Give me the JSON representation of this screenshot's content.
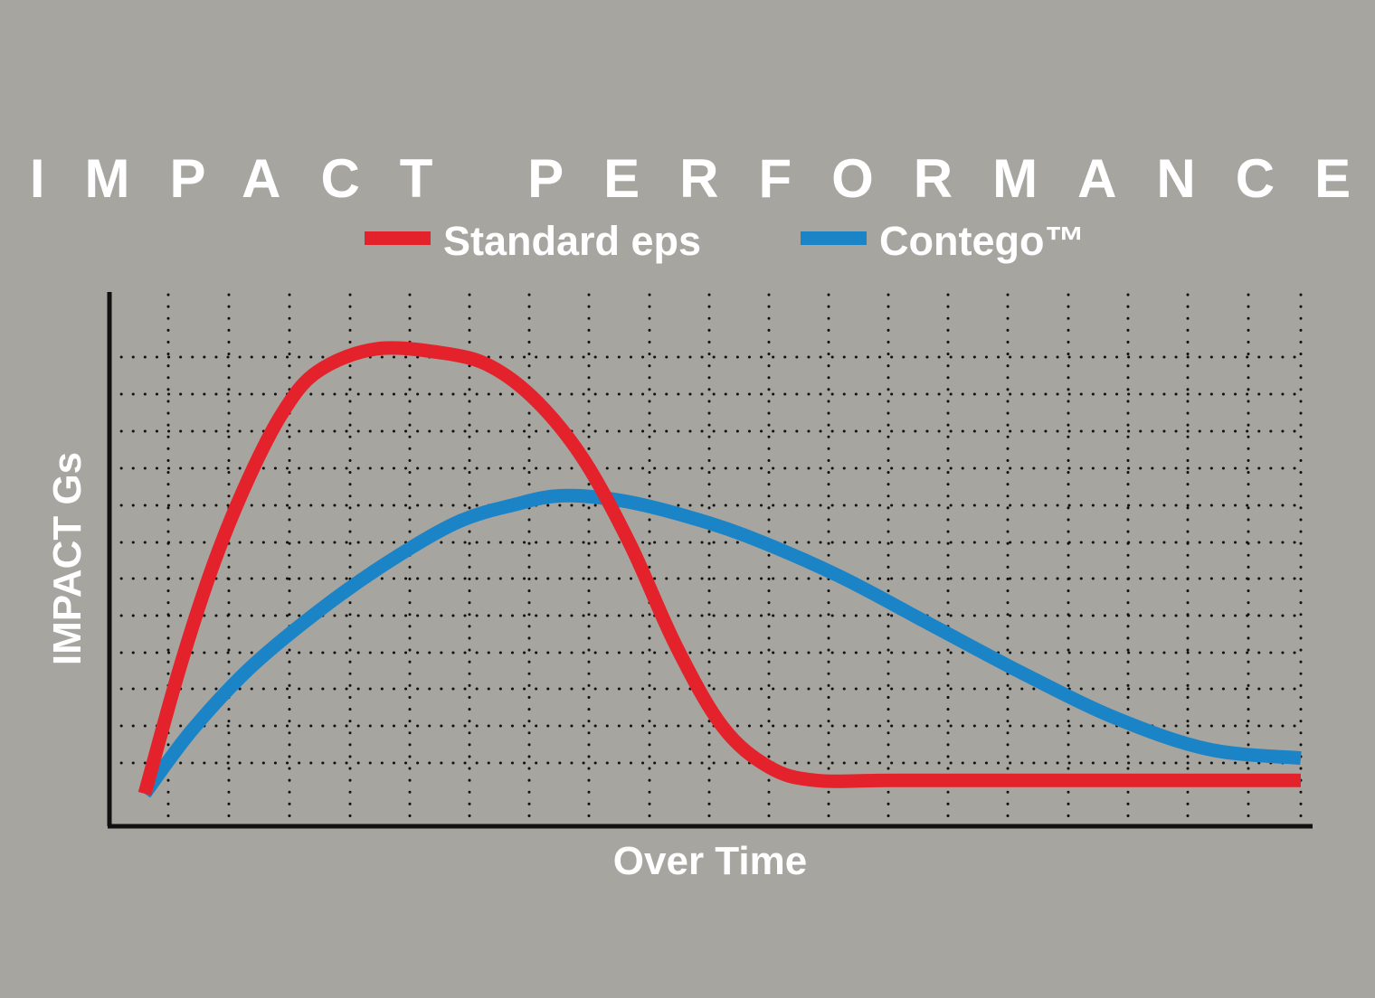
{
  "chart_data": {
    "type": "line",
    "title": "IMPACT PERFORMANCE",
    "xlabel": "Over Time",
    "ylabel": "IMPACT Gs",
    "x_ticks": "none (unlabeled)",
    "y_ticks": "none (unlabeled)",
    "grid": "dotted",
    "legend_position": "top",
    "series": [
      {
        "name": "Standard eps",
        "color": "#e3222b",
        "points": [
          [
            0.0,
            0.0
          ],
          [
            0.03,
            0.28
          ],
          [
            0.06,
            0.52
          ],
          [
            0.09,
            0.71
          ],
          [
            0.12,
            0.86
          ],
          [
            0.15,
            0.95
          ],
          [
            0.2,
            1.0
          ],
          [
            0.26,
            0.99
          ],
          [
            0.3,
            0.96
          ],
          [
            0.34,
            0.88
          ],
          [
            0.38,
            0.75
          ],
          [
            0.42,
            0.56
          ],
          [
            0.46,
            0.33
          ],
          [
            0.5,
            0.15
          ],
          [
            0.54,
            0.06
          ],
          [
            0.58,
            0.03
          ],
          [
            0.65,
            0.03
          ],
          [
            0.8,
            0.03
          ],
          [
            1.0,
            0.03
          ]
        ]
      },
      {
        "name": "Contego™",
        "color": "#1b84c7",
        "points": [
          [
            0.0,
            0.0
          ],
          [
            0.04,
            0.14
          ],
          [
            0.09,
            0.28
          ],
          [
            0.15,
            0.41
          ],
          [
            0.21,
            0.52
          ],
          [
            0.27,
            0.61
          ],
          [
            0.32,
            0.65
          ],
          [
            0.36,
            0.67
          ],
          [
            0.41,
            0.66
          ],
          [
            0.46,
            0.63
          ],
          [
            0.52,
            0.58
          ],
          [
            0.6,
            0.49
          ],
          [
            0.68,
            0.38
          ],
          [
            0.76,
            0.27
          ],
          [
            0.84,
            0.17
          ],
          [
            0.92,
            0.1
          ],
          [
            1.0,
            0.08
          ]
        ]
      }
    ]
  }
}
